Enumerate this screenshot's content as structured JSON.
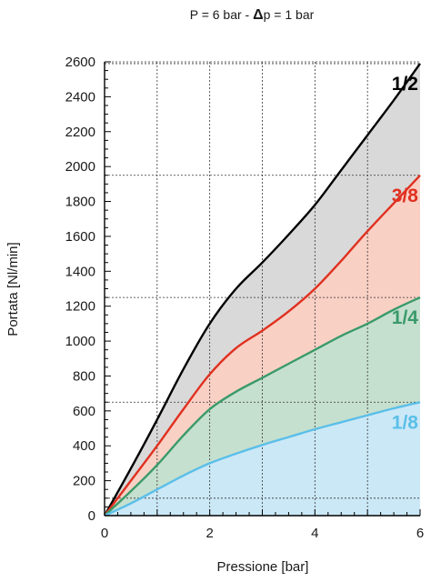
{
  "chart_data": {
    "type": "area",
    "title_parts": [
      "P = 6 bar - ",
      "Δ",
      "p = 1 bar"
    ],
    "xlabel": "Pressione [bar]",
    "ylabel": "Portata [Nl/min]",
    "xlim": [
      0,
      6
    ],
    "ylim": [
      0,
      2600
    ],
    "x_ticks": [
      "0",
      "2",
      "4",
      "6"
    ],
    "y_ticks": [
      "0",
      "200",
      "400",
      "600",
      "800",
      "1000",
      "1200",
      "1400",
      "1600",
      "1800",
      "2000",
      "2200",
      "2400",
      "2600"
    ],
    "grid": true,
    "series": [
      {
        "name": "1/2",
        "color": "#000000",
        "fill": "#d9d9d9",
        "x": [
          0,
          0.5,
          1,
          1.5,
          2,
          2.5,
          3,
          3.5,
          4,
          4.5,
          5,
          5.5,
          6
        ],
        "y": [
          0,
          270,
          550,
          840,
          1100,
          1300,
          1450,
          1610,
          1780,
          1980,
          2180,
          2380,
          2590
        ]
      },
      {
        "name": "3/8",
        "color": "#e03020",
        "fill": "#f9d0c4",
        "x": [
          0,
          0.5,
          1,
          1.5,
          2,
          2.5,
          3,
          3.5,
          4,
          4.5,
          5,
          5.5,
          6
        ],
        "y": [
          0,
          200,
          400,
          610,
          810,
          960,
          1060,
          1170,
          1300,
          1460,
          1630,
          1790,
          1950
        ]
      },
      {
        "name": "1/4",
        "color": "#3a9a6a",
        "fill": "#c6e0cf",
        "x": [
          0,
          0.5,
          1,
          1.5,
          2,
          2.5,
          3,
          3.5,
          4,
          4.5,
          5,
          5.5,
          6
        ],
        "y": [
          0,
          140,
          290,
          460,
          610,
          710,
          790,
          870,
          950,
          1030,
          1100,
          1180,
          1250
        ]
      },
      {
        "name": "1/8",
        "color": "#5bbfe8",
        "fill": "#cbe8f7",
        "x": [
          0,
          0.5,
          1,
          1.5,
          2,
          2.5,
          3,
          3.5,
          4,
          4.5,
          5,
          5.5,
          6
        ],
        "y": [
          0,
          70,
          150,
          230,
          300,
          355,
          405,
          450,
          495,
          535,
          575,
          615,
          650
        ]
      }
    ]
  }
}
